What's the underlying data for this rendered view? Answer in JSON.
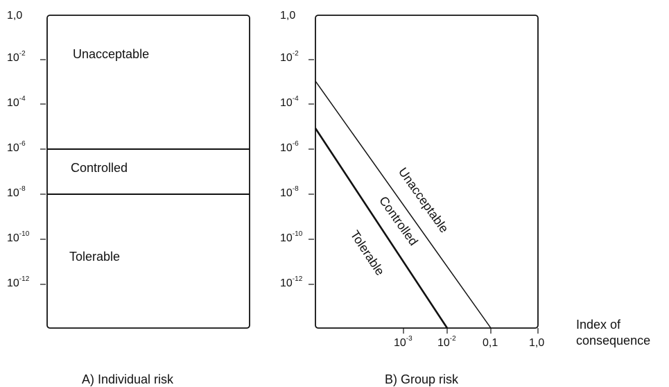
{
  "panel_a": {
    "caption": "A)  Individual risk",
    "y_ticks": [
      {
        "base": "1,0",
        "exp": ""
      },
      {
        "base": "10",
        "exp": "-2"
      },
      {
        "base": "10",
        "exp": "-4"
      },
      {
        "base": "10",
        "exp": "-6"
      },
      {
        "base": "10",
        "exp": "-8"
      },
      {
        "base": "10",
        "exp": "-10"
      },
      {
        "base": "10",
        "exp": "-12"
      }
    ],
    "zones": [
      "Unacceptable",
      "Controlled",
      "Tolerable"
    ]
  },
  "panel_b": {
    "caption": "B) Group risk",
    "y_ticks": [
      {
        "base": "1,0",
        "exp": ""
      },
      {
        "base": "10",
        "exp": "-2"
      },
      {
        "base": "10",
        "exp": "-4"
      },
      {
        "base": "10",
        "exp": "-6"
      },
      {
        "base": "10",
        "exp": "-8"
      },
      {
        "base": "10",
        "exp": "-10"
      },
      {
        "base": "10",
        "exp": "-12"
      }
    ],
    "x_ticks": [
      {
        "base": "10",
        "exp": "-3"
      },
      {
        "base": "10",
        "exp": "-2"
      },
      {
        "base": "0,1",
        "exp": ""
      },
      {
        "base": "1,0",
        "exp": ""
      }
    ],
    "x_label": [
      "Index of",
      "consequence"
    ],
    "zones": [
      "Unacceptable",
      "Controlled",
      "Tolerable"
    ]
  }
}
